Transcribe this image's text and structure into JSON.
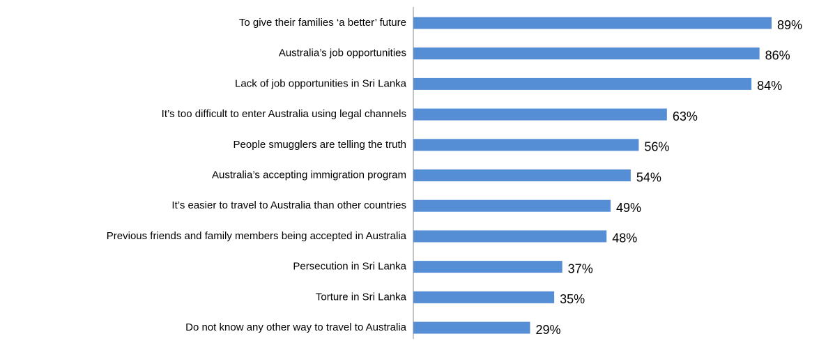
{
  "chart_data": {
    "type": "barh",
    "categories": [
      "To give their families ‘a better’ future",
      "Australia’s job opportunities",
      "Lack of job opportunities in Sri Lanka",
      "It’s too difficult to enter Australia using legal channels",
      "People smugglers are telling the truth",
      "Australia’s accepting immigration program",
      "It’s easier to travel to Australia than other countries",
      "Previous friends and family members being accepted in Australia",
      "Persecution in Sri Lanka",
      "Torture in Sri Lanka",
      "Do not know any other way to travel to Australia"
    ],
    "values": [
      89,
      86,
      84,
      63,
      56,
      54,
      49,
      48,
      37,
      35,
      29
    ],
    "value_labels": [
      "89%",
      "86%",
      "84%",
      "63%",
      "56%",
      "54%",
      "49%",
      "48%",
      "37%",
      "35%",
      "29%"
    ],
    "color": "#558ed5"
  }
}
